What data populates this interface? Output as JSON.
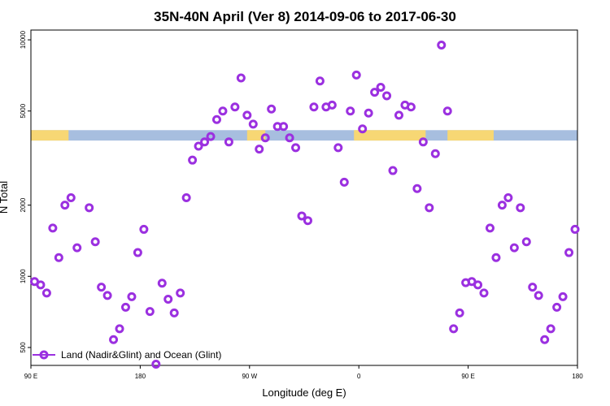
{
  "chart_data": {
    "type": "scatter",
    "title": "35N-40N April (Ver 8)   2014-09-06 to 2017-06-30",
    "xlabel": "Longitude (deg E)",
    "ylabel": "N Total",
    "x_ticks": [
      {
        "value": 90,
        "label": "90 E"
      },
      {
        "value": 180,
        "label": "180"
      },
      {
        "value": 270,
        "label": "90 W"
      },
      {
        "value": 360,
        "label": "0"
      },
      {
        "value": 450,
        "label": "90 E"
      },
      {
        "value": 540,
        "label": "180"
      }
    ],
    "y_ticks": [
      500,
      1000,
      2000,
      5000,
      10000
    ],
    "xlim": [
      90,
      540
    ],
    "ylim": [
      420,
      11000
    ],
    "y_scale": "log",
    "grid": false,
    "legend_position": "bottom-left",
    "series": [
      {
        "name": "Land (Nadir&Glint) and Ocean (Glint)",
        "color": "#9b30e0",
        "x": [
          93,
          98,
          103,
          108,
          113,
          118,
          123,
          128,
          138,
          143,
          148,
          153,
          158,
          163,
          168,
          173,
          178,
          183,
          188,
          193,
          198,
          203,
          208,
          213,
          218,
          223,
          228,
          233,
          238,
          243,
          248,
          253,
          258,
          263,
          268,
          273,
          278,
          283,
          288,
          293,
          298,
          303,
          308,
          313,
          318,
          323,
          328,
          333,
          338,
          343,
          348,
          353,
          358,
          363,
          368,
          373,
          378,
          383,
          388,
          393,
          398,
          403,
          408,
          413,
          418,
          423,
          428,
          433,
          438,
          443,
          448,
          453,
          458,
          463,
          468,
          473,
          478,
          483,
          488,
          493,
          498,
          503,
          508,
          513,
          518,
          523,
          528,
          533,
          538
        ],
        "y": [
          950,
          920,
          850,
          1600,
          1200,
          2000,
          2150,
          1320,
          1950,
          1400,
          900,
          830,
          540,
          600,
          740,
          820,
          1260,
          1580,
          710,
          425,
          935,
          800,
          700,
          850,
          2150,
          3100,
          3550,
          3700,
          3900,
          4600,
          5000,
          3700,
          5200,
          6900,
          4800,
          4400,
          3450,
          3850,
          5100,
          4300,
          4300,
          3850,
          3500,
          1800,
          1720,
          5200,
          6700,
          5200,
          5300,
          3500,
          2500,
          5000,
          7100,
          4200,
          4900,
          6000,
          6300,
          5800,
          2800,
          4800,
          5300,
          5200,
          2350,
          3700,
          1950,
          3300,
          9500,
          5000,
          600,
          700,
          940,
          950,
          920,
          850,
          1600,
          1200,
          2000,
          2150,
          1320,
          1950,
          1400,
          900,
          830,
          540,
          600,
          740,
          820,
          1260,
          1580
        ]
      }
    ],
    "surface_band": {
      "y_low": 3750,
      "y_high": 4150,
      "base_color": "#a7bedf",
      "land_color": "#f7d774",
      "land_ranges": [
        [
          90,
          121
        ],
        [
          268,
          283
        ],
        [
          356,
          415
        ],
        [
          433,
          471
        ]
      ]
    }
  }
}
